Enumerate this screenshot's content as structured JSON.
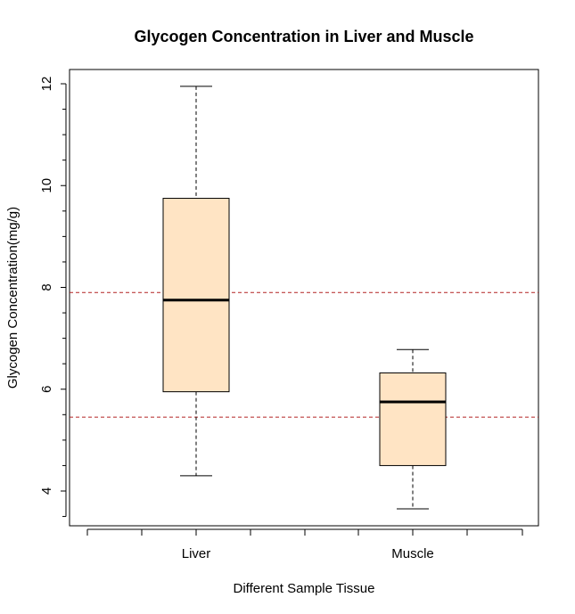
{
  "chart_data": {
    "type": "boxplot",
    "title": "Glycogen Concentration in Liver and Muscle",
    "xlabel": "Different Sample Tissue",
    "ylabel": "Glycogen Concentration(mg/g)",
    "ylim": [
      3.3,
      12.3
    ],
    "y_ticks": [
      4,
      6,
      8,
      10,
      12
    ],
    "y_minor_ticks": [
      3.5,
      4.5,
      5,
      5.5,
      6.5,
      7,
      7.5,
      8.5,
      9,
      9.5,
      10.5,
      11,
      11.5
    ],
    "categories": [
      "Liver",
      "Muscle"
    ],
    "boxes": [
      {
        "label": "Liver",
        "min": 4.3,
        "q1": 5.95,
        "median": 7.75,
        "q3": 9.75,
        "max": 11.95
      },
      {
        "label": "Muscle",
        "min": 3.65,
        "q1": 4.5,
        "median": 5.75,
        "q3": 6.32,
        "max": 6.78
      }
    ],
    "reference_lines": [
      7.9,
      5.45
    ],
    "colors": {
      "box_fill": "#FFE4C4",
      "reference_line": "#B22222",
      "axis": "#000000"
    },
    "grid": false
  }
}
